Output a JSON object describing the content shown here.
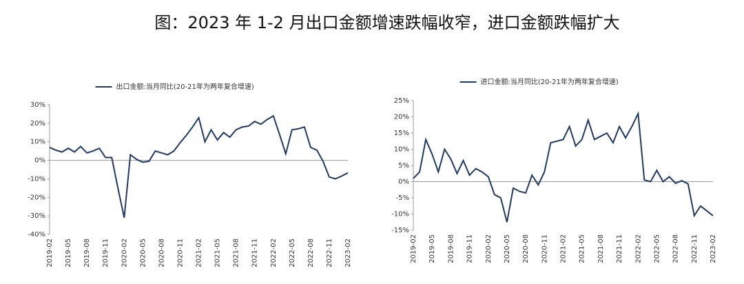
{
  "title": "图：2023 年 1-2 月出口金额增速跌幅收窄，进口金额跌幅扩大",
  "chart_data": [
    {
      "type": "line",
      "categories": [
        "2019-02",
        null,
        null,
        "2019-05",
        null,
        null,
        "2019-08",
        null,
        null,
        "2019-11",
        null,
        null,
        "2020-02",
        null,
        null,
        "2020-05",
        null,
        null,
        "2020-08",
        null,
        null,
        "2020-11",
        null,
        null,
        "2021-02",
        null,
        null,
        "2021-05",
        null,
        null,
        "2021-08",
        null,
        null,
        "2021-11",
        null,
        null,
        "2022-02",
        null,
        null,
        "2022-05",
        null,
        null,
        "2022-08",
        null,
        null,
        "2022-11",
        null,
        null,
        "2023-02"
      ],
      "series": [
        {
          "name": "出口金额:当月同比(20-21年为两年复合增速)",
          "color": "#1f3864",
          "values": [
            7,
            5.5,
            4.5,
            6.5,
            4.5,
            7.5,
            4,
            5,
            6.5,
            1.5,
            1.5,
            -15,
            -31,
            3,
            0.5,
            -1,
            -0.5,
            5,
            4,
            3,
            5,
            9.5,
            13.5,
            18,
            23,
            10,
            16.5,
            11,
            15,
            12.5,
            16.5,
            18,
            18.5,
            21,
            19.5,
            22,
            24,
            14,
            3.5,
            16.5,
            17,
            18,
            7,
            5.5,
            -0.5,
            -9,
            -10,
            -8.5,
            -6.8
          ]
        }
      ],
      "ylim": [
        -40,
        30
      ],
      "yticks": [
        {
          "value": -40,
          "label": "-40%"
        },
        {
          "value": -30,
          "label": "-30%"
        },
        {
          "value": -20,
          "label": "-20%"
        },
        {
          "value": -10,
          "label": "-10%"
        },
        {
          "value": 0,
          "label": "0%"
        },
        {
          "value": 10,
          "label": "10%"
        },
        {
          "value": 20,
          "label": "20%"
        },
        {
          "value": 30,
          "label": "30%"
        }
      ]
    },
    {
      "type": "line",
      "categories": [
        "2019-02",
        null,
        null,
        "2019-05",
        null,
        null,
        "2019-08",
        null,
        null,
        "2019-11",
        null,
        null,
        "2020-02",
        null,
        null,
        "2020-05",
        null,
        null,
        "2020-08",
        null,
        null,
        "2020-11",
        null,
        null,
        "2021-02",
        null,
        null,
        "2021-05",
        null,
        null,
        "2021-08",
        null,
        null,
        "2021-11",
        null,
        null,
        "2022-02",
        null,
        null,
        "2022-05",
        null,
        null,
        "2022-08",
        null,
        null,
        "2022-11",
        null,
        null,
        "2023-02"
      ],
      "series": [
        {
          "name": "进口金额:当月同比(20-21年为两年复合增速)",
          "color": "#1f3864",
          "values": [
            1,
            3,
            13,
            8.5,
            3,
            10,
            7,
            2.5,
            6.5,
            2,
            4,
            3,
            1.5,
            -4,
            -5,
            -12.5,
            -2,
            -3,
            -3.5,
            2,
            -1,
            3,
            12,
            12.5,
            13,
            17,
            11,
            13,
            19,
            13,
            14,
            15,
            12,
            17,
            13.5,
            17,
            21,
            0.5,
            0,
            3.5,
            0,
            1.5,
            -0.5,
            0.3,
            -0.7,
            -10.5,
            -7.5,
            -9,
            -10.5
          ]
        }
      ],
      "ylim": [
        -15,
        25
      ],
      "yticks": [
        {
          "value": -15,
          "label": "-15%"
        },
        {
          "value": -10,
          "label": "-10%"
        },
        {
          "value": -5,
          "label": "-5%"
        },
        {
          "value": 0,
          "label": "0%"
        },
        {
          "value": 5,
          "label": "5%"
        },
        {
          "value": 10,
          "label": "10%"
        },
        {
          "value": 15,
          "label": "15%"
        },
        {
          "value": 20,
          "label": "20%"
        },
        {
          "value": 25,
          "label": "25%"
        }
      ]
    }
  ]
}
